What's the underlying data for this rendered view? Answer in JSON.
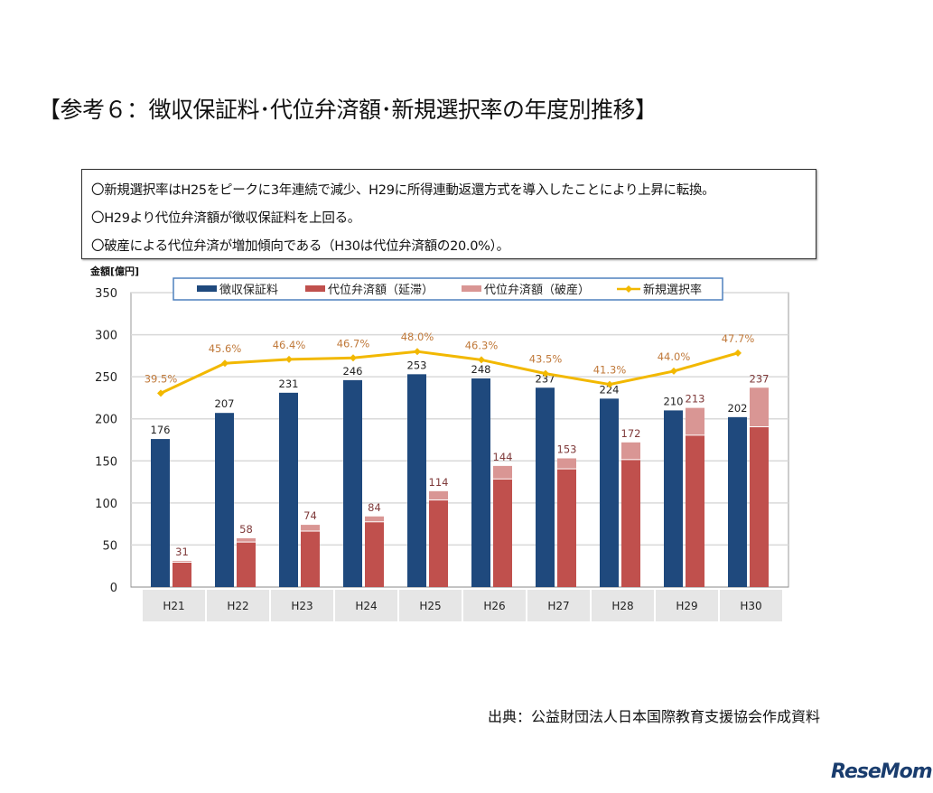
{
  "title": "【参考６：徴収保証料･代位弁済額･新規選択率の年度別推移】",
  "notes": [
    "〇新規選択率はH25をピークに3年連続で減少、H29に所得連動返還方式を導入したことにより上昇に転換。",
    "〇H29より代位弁済額が徴収保証料を上回る。",
    "〇破産による代位弁済が増加傾向である（H30は代位弁済額の20.0%）。"
  ],
  "source": "出典：公益財団法人日本国際教育支援協会作成資料",
  "logo": "ReseMom",
  "chart_data": {
    "type": "bar",
    "ylabel": "金額[億円]",
    "ylim": [
      0,
      350
    ],
    "yticks": [
      "0",
      "50",
      "100",
      "150",
      "200",
      "250",
      "300",
      "350"
    ],
    "secondary_ylim": [
      0,
      60
    ],
    "grid": true,
    "legend_placement": "top",
    "categories": [
      "H21",
      "H22",
      "H23",
      "H24",
      "H25",
      "H26",
      "H27",
      "H28",
      "H29",
      "H30"
    ],
    "series": [
      {
        "name": "徴収保証料",
        "type": "bar",
        "color": "#1f497d",
        "values": [
          176,
          207,
          231,
          246,
          253,
          248,
          237,
          224,
          210,
          202
        ]
      },
      {
        "name": "代位弁済額（延滞）",
        "type": "stacked-bar",
        "color": "#c0504d",
        "values": [
          29,
          53,
          66,
          77,
          103,
          128,
          140,
          151,
          180,
          190
        ]
      },
      {
        "name": "代位弁済額（破産）",
        "type": "stacked-bar",
        "color": "#d99694",
        "values": [
          2,
          5,
          8,
          7,
          11,
          16,
          13,
          21,
          33,
          47
        ]
      },
      {
        "name": "新規選択率",
        "type": "line",
        "color": "#f2b800",
        "unit": "%",
        "values": [
          39.5,
          45.6,
          46.4,
          46.7,
          48.0,
          46.3,
          43.5,
          41.3,
          44.0,
          47.7
        ]
      }
    ],
    "bar_labels": [
      "176",
      "207",
      "231",
      "246",
      "253",
      "248",
      "237",
      "224",
      "210",
      "202"
    ],
    "stack_total_labels": [
      "31",
      "58",
      "74",
      "84",
      "114",
      "144",
      "153",
      "172",
      "213",
      "237"
    ],
    "line_labels": [
      "39.5%",
      "45.6%",
      "46.4%",
      "46.7%",
      "48.0%",
      "46.3%",
      "43.5%",
      "41.3%",
      "44.0%",
      "47.7%"
    ]
  }
}
